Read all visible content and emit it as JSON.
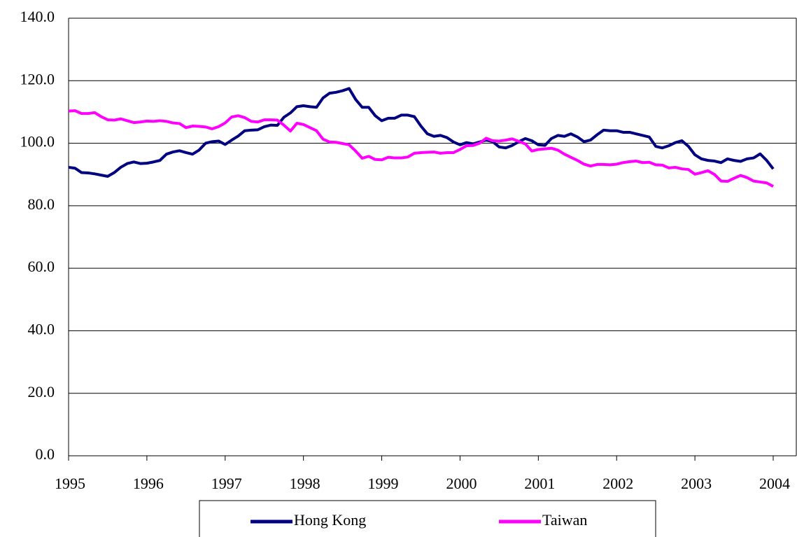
{
  "chart_data": {
    "type": "line",
    "categories": [
      "1995",
      null,
      null,
      null,
      null,
      null,
      null,
      null,
      null,
      null,
      null,
      null,
      "1996",
      null,
      null,
      null,
      null,
      null,
      null,
      null,
      null,
      null,
      null,
      null,
      "1997",
      null,
      null,
      null,
      null,
      null,
      null,
      null,
      null,
      null,
      null,
      null,
      "1998",
      null,
      null,
      null,
      null,
      null,
      null,
      null,
      null,
      null,
      null,
      null,
      "1999",
      null,
      null,
      null,
      null,
      null,
      null,
      null,
      null,
      null,
      null,
      null,
      "2000",
      null,
      null,
      null,
      null,
      null,
      null,
      null,
      null,
      null,
      null,
      null,
      "2001",
      null,
      null,
      null,
      null,
      null,
      null,
      null,
      null,
      null,
      null,
      null,
      "2002",
      null,
      null,
      null,
      null,
      null,
      null,
      null,
      null,
      null,
      null,
      null,
      "2003",
      null,
      null,
      null,
      null,
      null,
      null,
      null,
      null,
      null,
      null,
      null,
      "2004"
    ],
    "series": [
      {
        "name": "Hong Kong",
        "color": "#000080",
        "values": [
          92.3,
          92.0,
          90.6,
          90.5,
          90.2,
          89.8,
          89.4,
          90.6,
          92.3,
          93.5,
          94.0,
          93.5,
          93.6,
          94.0,
          94.5,
          96.5,
          97.2,
          97.6,
          97.0,
          96.5,
          97.8,
          100.0,
          100.5,
          100.7,
          99.6,
          101.0,
          102.3,
          104.0,
          104.2,
          104.3,
          105.3,
          105.8,
          105.7,
          108.3,
          109.7,
          111.7,
          112.0,
          111.7,
          111.5,
          114.5,
          116.0,
          116.3,
          116.8,
          117.5,
          114.0,
          111.5,
          111.5,
          108.8,
          107.2,
          108.0,
          108.0,
          109.0,
          109.0,
          108.5,
          105.5,
          103.0,
          102.2,
          102.5,
          101.8,
          100.4,
          99.5,
          100.2,
          99.8,
          100.4,
          101.0,
          100.5,
          98.8,
          98.5,
          99.3,
          100.5,
          101.5,
          100.8,
          99.5,
          99.3,
          101.5,
          102.5,
          102.2,
          103.0,
          102.0,
          100.5,
          101.0,
          102.7,
          104.2,
          104.0,
          104.0,
          103.5,
          103.5,
          103.0,
          102.5,
          102.0,
          99.0,
          98.5,
          99.2,
          100.2,
          100.8,
          99.0,
          96.3,
          95.0,
          94.5,
          94.3,
          93.8,
          95.0,
          94.5,
          94.2,
          95.0,
          95.3,
          96.6,
          94.5,
          91.8
        ]
      },
      {
        "name": "Taiwan",
        "color": "#ff00ff",
        "values": [
          110.3,
          110.4,
          109.5,
          109.5,
          109.8,
          108.5,
          107.5,
          107.4,
          107.8,
          107.2,
          106.6,
          106.8,
          107.1,
          107.0,
          107.2,
          107.0,
          106.5,
          106.3,
          105.0,
          105.5,
          105.4,
          105.2,
          104.6,
          105.3,
          106.5,
          108.4,
          108.8,
          108.2,
          107.0,
          106.8,
          107.5,
          107.5,
          107.4,
          105.8,
          103.9,
          106.4,
          106.0,
          105.0,
          104.0,
          101.3,
          100.4,
          100.3,
          99.9,
          99.5,
          97.5,
          95.2,
          95.8,
          94.8,
          94.7,
          95.5,
          95.3,
          95.3,
          95.6,
          96.8,
          97.0,
          97.1,
          97.2,
          96.8,
          97.0,
          97.0,
          98.0,
          99.2,
          99.3,
          100.0,
          101.6,
          100.8,
          100.7,
          101.0,
          101.4,
          100.6,
          99.8,
          97.5,
          98.0,
          98.2,
          98.4,
          97.8,
          96.5,
          95.5,
          94.5,
          93.3,
          92.7,
          93.2,
          93.2,
          93.1,
          93.3,
          93.8,
          94.1,
          94.3,
          93.8,
          93.9,
          93.1,
          93.0,
          92.1,
          92.3,
          91.8,
          91.6,
          90.1,
          90.6,
          91.2,
          90.0,
          87.9,
          87.8,
          88.8,
          89.7,
          89.0,
          87.9,
          87.6,
          87.3,
          86.2
        ]
      }
    ],
    "ylim": [
      0,
      140
    ],
    "yticks": [
      {
        "value": 0,
        "label": "0.0"
      },
      {
        "value": 20,
        "label": "20.0"
      },
      {
        "value": 40,
        "label": "40.0"
      },
      {
        "value": 60,
        "label": "60.0"
      },
      {
        "value": 80,
        "label": "80.0"
      },
      {
        "value": 100,
        "label": "100.0"
      },
      {
        "value": 120,
        "label": "120.0"
      },
      {
        "value": 140,
        "label": "140.0"
      }
    ],
    "grid": true,
    "legend": "bottom"
  }
}
